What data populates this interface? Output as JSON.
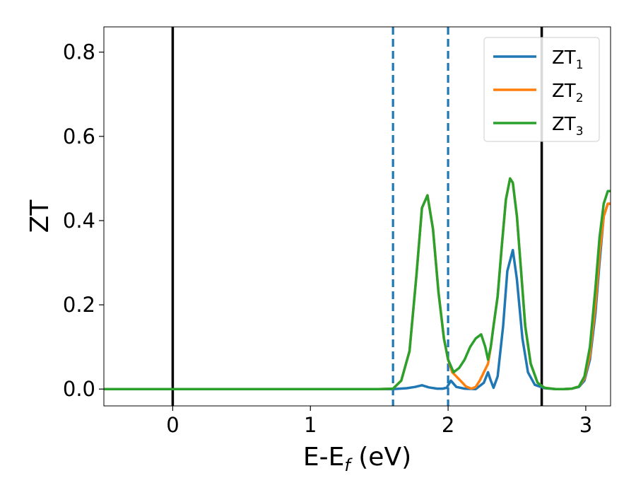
{
  "chart_data": {
    "type": "line",
    "xlabel": {
      "main": "E-E",
      "sub": "f",
      "suffix": " (eV)"
    },
    "ylabel": "ZT",
    "xlim": [
      -0.5,
      3.18
    ],
    "ylim": [
      -0.04,
      0.86
    ],
    "xticks": [
      0,
      1,
      2,
      3
    ],
    "xtick_labels": [
      "0",
      "1",
      "2",
      "3"
    ],
    "yticks": [
      0.0,
      0.2,
      0.4,
      0.6,
      0.8
    ],
    "ytick_labels": [
      "0.0",
      "0.2",
      "0.4",
      "0.6",
      "0.8"
    ],
    "grid": false,
    "legend_position": "top-right",
    "reference_lines": [
      {
        "x": 0.0,
        "style": "solid",
        "color": "#000000"
      },
      {
        "x": 2.68,
        "style": "solid",
        "color": "#000000"
      },
      {
        "x": 1.6,
        "style": "dashed",
        "color": "#1f77b4"
      },
      {
        "x": 2.0,
        "style": "dashed",
        "color": "#1f77b4"
      }
    ],
    "series": [
      {
        "name": "ZT",
        "sub": "1",
        "color": "#1f77b4",
        "x": [
          -0.5,
          1.5,
          1.6,
          1.7,
          1.76,
          1.81,
          1.86,
          1.92,
          1.96,
          1.99,
          2.02,
          2.06,
          2.12,
          2.2,
          2.26,
          2.29,
          2.31,
          2.33,
          2.36,
          2.4,
          2.43,
          2.47,
          2.5,
          2.54,
          2.58,
          2.63,
          2.7,
          2.78,
          2.84,
          2.9,
          2.95,
          2.99,
          3.03,
          3.07,
          3.1,
          3.13,
          3.16,
          3.18
        ],
        "y": [
          0.0,
          0.0,
          0.0,
          0.002,
          0.005,
          0.009,
          0.004,
          0.001,
          0.001,
          0.003,
          0.02,
          0.005,
          0.001,
          0.0,
          0.015,
          0.04,
          0.02,
          0.003,
          0.03,
          0.15,
          0.28,
          0.33,
          0.26,
          0.12,
          0.04,
          0.01,
          0.002,
          0.0,
          0.0,
          0.001,
          0.005,
          0.02,
          0.07,
          0.18,
          0.3,
          0.41,
          0.44,
          0.44
        ]
      },
      {
        "name": "ZT",
        "sub": "2",
        "color": "#ff7f0e",
        "x": [
          -0.5,
          1.5,
          1.6,
          1.66,
          1.72,
          1.77,
          1.81,
          1.85,
          1.89,
          1.93,
          1.97,
          2.0,
          2.03,
          2.06,
          2.09,
          2.13,
          2.17,
          2.2,
          2.23,
          2.26,
          2.29,
          2.31,
          2.33,
          2.36,
          2.39,
          2.42,
          2.45,
          2.47,
          2.5,
          2.53,
          2.56,
          2.6,
          2.65,
          2.7,
          2.78,
          2.84,
          2.9,
          2.95,
          2.99,
          3.03,
          3.07,
          3.1,
          3.13,
          3.16,
          3.18
        ],
        "y": [
          0.0,
          0.0,
          0.001,
          0.02,
          0.09,
          0.27,
          0.43,
          0.46,
          0.38,
          0.23,
          0.12,
          0.07,
          0.04,
          0.03,
          0.02,
          0.006,
          0.001,
          0.005,
          0.02,
          0.04,
          0.06,
          0.1,
          0.15,
          0.22,
          0.34,
          0.45,
          0.5,
          0.49,
          0.41,
          0.28,
          0.15,
          0.06,
          0.015,
          0.003,
          0.0,
          0.0,
          0.001,
          0.006,
          0.025,
          0.08,
          0.2,
          0.32,
          0.41,
          0.44,
          0.44
        ]
      },
      {
        "name": "ZT",
        "sub": "3",
        "color": "#2ca02c",
        "x": [
          -0.5,
          1.5,
          1.6,
          1.66,
          1.72,
          1.77,
          1.81,
          1.85,
          1.89,
          1.93,
          1.97,
          2.0,
          2.04,
          2.08,
          2.12,
          2.16,
          2.2,
          2.24,
          2.27,
          2.29,
          2.31,
          2.33,
          2.36,
          2.39,
          2.42,
          2.45,
          2.47,
          2.5,
          2.53,
          2.56,
          2.6,
          2.65,
          2.7,
          2.78,
          2.84,
          2.9,
          2.95,
          2.99,
          3.03,
          3.07,
          3.1,
          3.13,
          3.16,
          3.18
        ],
        "y": [
          0.0,
          0.0,
          0.001,
          0.02,
          0.09,
          0.27,
          0.43,
          0.46,
          0.38,
          0.23,
          0.12,
          0.07,
          0.04,
          0.05,
          0.07,
          0.1,
          0.12,
          0.13,
          0.1,
          0.07,
          0.1,
          0.15,
          0.22,
          0.34,
          0.45,
          0.5,
          0.49,
          0.41,
          0.28,
          0.15,
          0.06,
          0.015,
          0.003,
          0.0,
          0.0,
          0.001,
          0.006,
          0.03,
          0.1,
          0.24,
          0.36,
          0.44,
          0.47,
          0.47
        ]
      }
    ]
  }
}
